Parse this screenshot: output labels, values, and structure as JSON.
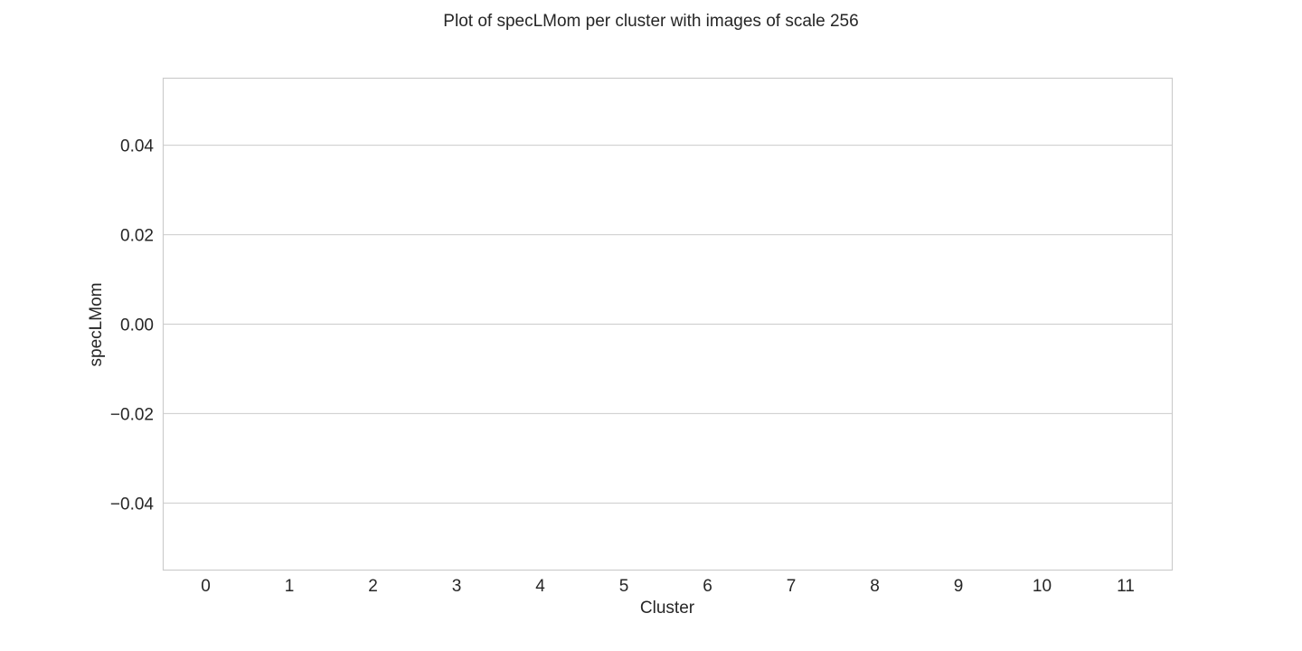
{
  "chart_data": {
    "type": "bar",
    "title": "Plot of specLMom per cluster with images of scale 256",
    "xlabel": "Cluster",
    "ylabel": "specLMom",
    "categories": [
      "0",
      "1",
      "2",
      "3",
      "4",
      "5",
      "6",
      "7",
      "8",
      "9",
      "10",
      "11"
    ],
    "values": [
      null,
      null,
      null,
      null,
      null,
      null,
      null,
      null,
      null,
      null,
      null,
      null
    ],
    "ylim": [
      -0.055,
      0.055
    ],
    "yticks": [
      -0.04,
      -0.02,
      0.0,
      0.02,
      0.04
    ],
    "ytick_labels": [
      "−0.04",
      "−0.02",
      "0.00",
      "0.02",
      "0.04"
    ],
    "grid": "horizontal",
    "legend": "none",
    "colors": {
      "frame": "#cccccc",
      "grid": "#cccccc",
      "text": "#262626",
      "background": "#ffffff"
    }
  }
}
